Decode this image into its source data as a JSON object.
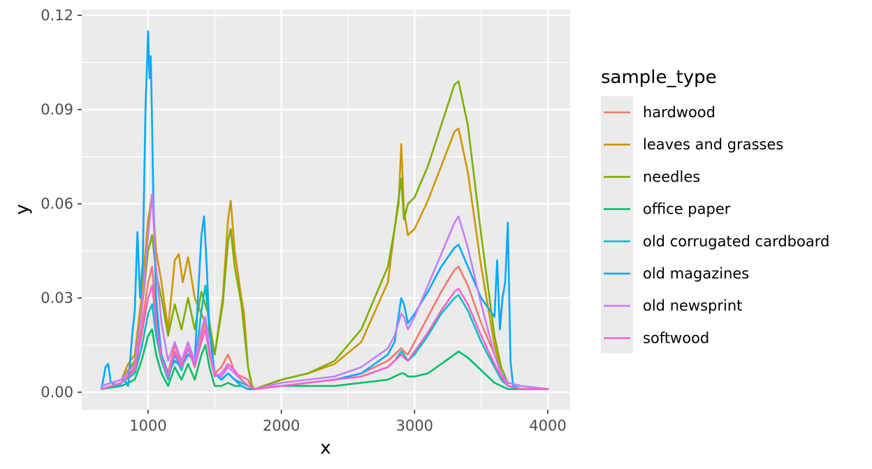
{
  "chart_data": {
    "type": "line",
    "title": "",
    "xlabel": "x",
    "ylabel": "y",
    "xlim": [
      650,
      4000
    ],
    "ylim": [
      0,
      0.12
    ],
    "x_ticks": [
      1000,
      2000,
      3000,
      4000
    ],
    "x_tick_labels": [
      "1000",
      "2000",
      "3000",
      "4000"
    ],
    "y_ticks": [
      0,
      0.03,
      0.06,
      0.09,
      0.12
    ],
    "y_tick_labels": [
      "0.00",
      "0.03",
      "0.06",
      "0.09",
      "0.12"
    ],
    "grid": true,
    "panel_background": "#ebebeb",
    "legend": {
      "title": "sample_type",
      "position": "right"
    },
    "series": [
      {
        "name": "hardwood",
        "color": "#F8766D",
        "values_description_free": true,
        "x": [
          650,
          800,
          900,
          950,
          1000,
          1030,
          1060,
          1100,
          1150,
          1200,
          1250,
          1300,
          1350,
          1400,
          1430,
          1460,
          1500,
          1550,
          1600,
          1620,
          1650,
          1700,
          1750,
          1780,
          1800,
          2000,
          2200,
          2400,
          2600,
          2800,
          2850,
          2900,
          2920,
          2950,
          3000,
          3100,
          3200,
          3300,
          3330,
          3400,
          3500,
          3600,
          3650,
          3700,
          3800,
          4000
        ],
        "y": [
          0.001,
          0.003,
          0.008,
          0.02,
          0.035,
          0.04,
          0.025,
          0.012,
          0.006,
          0.015,
          0.009,
          0.016,
          0.008,
          0.018,
          0.022,
          0.014,
          0.006,
          0.008,
          0.012,
          0.01,
          0.006,
          0.005,
          0.004,
          0.001,
          0.001,
          0.002,
          0.003,
          0.004,
          0.006,
          0.01,
          0.012,
          0.014,
          0.013,
          0.012,
          0.016,
          0.024,
          0.032,
          0.039,
          0.04,
          0.034,
          0.022,
          0.012,
          0.006,
          0.002,
          0.001,
          0.001
        ]
      },
      {
        "name": "leaves and grasses",
        "color": "#CD9600",
        "x": [
          650,
          800,
          850,
          900,
          950,
          1000,
          1030,
          1060,
          1100,
          1150,
          1200,
          1230,
          1260,
          1300,
          1350,
          1400,
          1450,
          1500,
          1560,
          1600,
          1620,
          1650,
          1700,
          1720,
          1750,
          1780,
          1800,
          2000,
          2200,
          2400,
          2600,
          2800,
          2850,
          2880,
          2900,
          2920,
          2950,
          3000,
          3100,
          3200,
          3300,
          3330,
          3400,
          3500,
          3600,
          3650,
          3700,
          3800,
          4000
        ],
        "y": [
          0.002,
          0.004,
          0.009,
          0.012,
          0.03,
          0.055,
          0.063,
          0.045,
          0.035,
          0.02,
          0.042,
          0.044,
          0.035,
          0.043,
          0.03,
          0.025,
          0.02,
          0.012,
          0.03,
          0.055,
          0.061,
          0.045,
          0.03,
          0.025,
          0.008,
          0.002,
          0.001,
          0.004,
          0.006,
          0.009,
          0.016,
          0.035,
          0.052,
          0.06,
          0.079,
          0.058,
          0.05,
          0.052,
          0.061,
          0.072,
          0.083,
          0.084,
          0.07,
          0.04,
          0.015,
          0.006,
          0.003,
          0.002,
          0.001
        ]
      },
      {
        "name": "needles",
        "color": "#7CAE00",
        "x": [
          650,
          800,
          900,
          950,
          1000,
          1030,
          1060,
          1100,
          1150,
          1200,
          1250,
          1300,
          1350,
          1400,
          1450,
          1500,
          1560,
          1600,
          1620,
          1650,
          1700,
          1750,
          1780,
          1800,
          2000,
          2200,
          2400,
          2600,
          2800,
          2850,
          2900,
          2920,
          2950,
          3000,
          3100,
          3200,
          3300,
          3330,
          3400,
          3500,
          3600,
          3650,
          3700,
          3800,
          4000
        ],
        "y": [
          0.002,
          0.004,
          0.01,
          0.025,
          0.045,
          0.05,
          0.038,
          0.03,
          0.018,
          0.028,
          0.02,
          0.03,
          0.02,
          0.032,
          0.025,
          0.012,
          0.028,
          0.048,
          0.052,
          0.04,
          0.028,
          0.008,
          0.002,
          0.001,
          0.004,
          0.006,
          0.01,
          0.02,
          0.04,
          0.052,
          0.068,
          0.055,
          0.06,
          0.062,
          0.072,
          0.085,
          0.098,
          0.099,
          0.085,
          0.05,
          0.018,
          0.008,
          0.003,
          0.002,
          0.001
        ]
      },
      {
        "name": "office paper",
        "color": "#00BE67",
        "x": [
          650,
          800,
          900,
          950,
          1000,
          1030,
          1060,
          1100,
          1150,
          1200,
          1250,
          1300,
          1350,
          1400,
          1430,
          1460,
          1500,
          1550,
          1600,
          1650,
          1700,
          1750,
          1800,
          2000,
          2200,
          2400,
          2600,
          2800,
          2850,
          2900,
          2920,
          2950,
          3000,
          3100,
          3200,
          3300,
          3330,
          3400,
          3500,
          3600,
          3650,
          3700,
          3800,
          4000
        ],
        "y": [
          0.001,
          0.002,
          0.004,
          0.01,
          0.018,
          0.02,
          0.012,
          0.006,
          0.002,
          0.008,
          0.004,
          0.009,
          0.004,
          0.012,
          0.015,
          0.008,
          0.002,
          0.002,
          0.003,
          0.002,
          0.002,
          0.001,
          0.001,
          0.002,
          0.002,
          0.002,
          0.003,
          0.004,
          0.005,
          0.006,
          0.006,
          0.005,
          0.005,
          0.006,
          0.009,
          0.012,
          0.013,
          0.011,
          0.007,
          0.003,
          0.002,
          0.001,
          0.001,
          0.001
        ]
      },
      {
        "name": "old corrugated cardboard",
        "color": "#00BFC4",
        "x": [
          650,
          800,
          900,
          950,
          1000,
          1030,
          1060,
          1100,
          1150,
          1200,
          1250,
          1300,
          1350,
          1400,
          1430,
          1460,
          1500,
          1550,
          1600,
          1650,
          1700,
          1750,
          1800,
          2000,
          2200,
          2400,
          2600,
          2800,
          2850,
          2900,
          2920,
          2950,
          3000,
          3100,
          3200,
          3300,
          3330,
          3400,
          3500,
          3600,
          3650,
          3700,
          3800,
          4000
        ],
        "y": [
          0.001,
          0.003,
          0.006,
          0.014,
          0.025,
          0.028,
          0.018,
          0.01,
          0.004,
          0.012,
          0.007,
          0.014,
          0.008,
          0.026,
          0.034,
          0.02,
          0.006,
          0.004,
          0.006,
          0.004,
          0.003,
          0.002,
          0.001,
          0.002,
          0.003,
          0.004,
          0.005,
          0.008,
          0.01,
          0.013,
          0.012,
          0.01,
          0.012,
          0.018,
          0.025,
          0.03,
          0.031,
          0.026,
          0.016,
          0.008,
          0.004,
          0.002,
          0.001,
          0.001
        ]
      },
      {
        "name": "old magazines",
        "color": "#00A9FF",
        "x": [
          650,
          680,
          700,
          720,
          780,
          820,
          850,
          880,
          900,
          920,
          940,
          960,
          980,
          1000,
          1010,
          1020,
          1030,
          1040,
          1060,
          1080,
          1100,
          1150,
          1200,
          1250,
          1300,
          1350,
          1380,
          1400,
          1420,
          1440,
          1460,
          1500,
          1550,
          1600,
          1650,
          1700,
          1750,
          1800,
          2000,
          2200,
          2400,
          2600,
          2800,
          2850,
          2900,
          2920,
          2950,
          3000,
          3100,
          3200,
          3300,
          3330,
          3400,
          3500,
          3600,
          3620,
          3640,
          3660,
          3680,
          3700,
          3720,
          3740,
          3800,
          4000
        ],
        "y": [
          0.001,
          0.008,
          0.009,
          0.003,
          0.002,
          0.004,
          0.002,
          0.018,
          0.026,
          0.051,
          0.03,
          0.042,
          0.09,
          0.115,
          0.1,
          0.107,
          0.085,
          0.06,
          0.03,
          0.02,
          0.012,
          0.006,
          0.01,
          0.008,
          0.012,
          0.01,
          0.035,
          0.05,
          0.056,
          0.04,
          0.02,
          0.006,
          0.004,
          0.006,
          0.004,
          0.002,
          0.001,
          0.001,
          0.002,
          0.003,
          0.004,
          0.006,
          0.012,
          0.016,
          0.03,
          0.028,
          0.022,
          0.025,
          0.032,
          0.04,
          0.046,
          0.047,
          0.04,
          0.03,
          0.024,
          0.042,
          0.02,
          0.03,
          0.035,
          0.054,
          0.01,
          0.002,
          0.001,
          0.001
        ]
      },
      {
        "name": "old newsprint",
        "color": "#C77CFF",
        "x": [
          650,
          800,
          900,
          950,
          1000,
          1030,
          1060,
          1100,
          1150,
          1200,
          1250,
          1300,
          1350,
          1400,
          1430,
          1460,
          1500,
          1550,
          1600,
          1650,
          1700,
          1750,
          1800,
          2000,
          2200,
          2400,
          2600,
          2800,
          2850,
          2900,
          2920,
          2950,
          3000,
          3100,
          3200,
          3300,
          3330,
          3400,
          3500,
          3600,
          3650,
          3700,
          3800,
          4000
        ],
        "y": [
          0.002,
          0.004,
          0.009,
          0.025,
          0.05,
          0.063,
          0.04,
          0.022,
          0.01,
          0.016,
          0.01,
          0.016,
          0.01,
          0.02,
          0.024,
          0.014,
          0.006,
          0.005,
          0.008,
          0.006,
          0.004,
          0.002,
          0.001,
          0.003,
          0.004,
          0.005,
          0.008,
          0.014,
          0.018,
          0.025,
          0.024,
          0.02,
          0.024,
          0.034,
          0.044,
          0.054,
          0.056,
          0.046,
          0.028,
          0.012,
          0.006,
          0.003,
          0.002,
          0.001
        ]
      },
      {
        "name": "softwood",
        "color": "#FF61CC",
        "x": [
          650,
          800,
          900,
          950,
          1000,
          1030,
          1060,
          1100,
          1150,
          1200,
          1250,
          1300,
          1350,
          1400,
          1430,
          1460,
          1500,
          1550,
          1600,
          1650,
          1700,
          1750,
          1800,
          2000,
          2200,
          2400,
          2600,
          2800,
          2850,
          2900,
          2920,
          2950,
          3000,
          3100,
          3200,
          3300,
          3330,
          3400,
          3500,
          3600,
          3650,
          3700,
          3800,
          4000
        ],
        "y": [
          0.001,
          0.003,
          0.007,
          0.018,
          0.03,
          0.034,
          0.022,
          0.011,
          0.005,
          0.013,
          0.008,
          0.014,
          0.008,
          0.016,
          0.02,
          0.012,
          0.005,
          0.006,
          0.009,
          0.007,
          0.004,
          0.002,
          0.001,
          0.002,
          0.003,
          0.004,
          0.005,
          0.008,
          0.01,
          0.012,
          0.011,
          0.01,
          0.013,
          0.019,
          0.026,
          0.032,
          0.033,
          0.028,
          0.018,
          0.009,
          0.005,
          0.002,
          0.001,
          0.001
        ]
      }
    ]
  }
}
